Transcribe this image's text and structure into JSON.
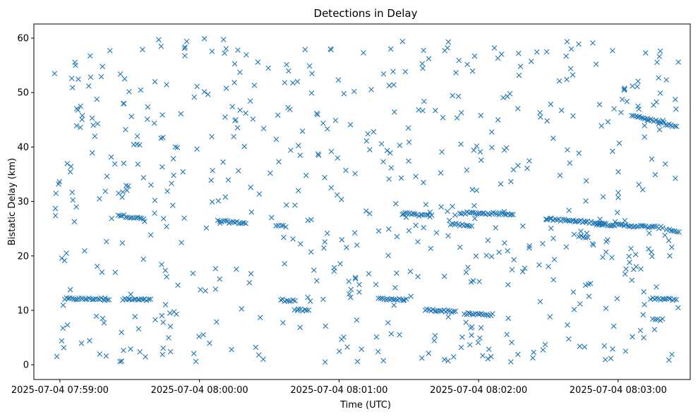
{
  "chart_data": {
    "type": "scatter",
    "title": "Detections in Delay",
    "xlabel": "Time (UTC)",
    "ylabel": "Bistatic Delay (km)",
    "x_ticks": [
      "2025-07-04 07:59:00",
      "2025-07-04 08:00:00",
      "2025-07-04 08:01:00",
      "2025-07-04 08:02:00",
      "2025-07-04 08:03:00"
    ],
    "x_tick_seconds": [
      0,
      60,
      120,
      180,
      240
    ],
    "x_unit": "seconds after 2025-07-04 07:59:00",
    "xlim": [
      -11.2,
      271
    ],
    "y_ticks": [
      0,
      10,
      20,
      30,
      40,
      50,
      60
    ],
    "ylim": [
      -2.7,
      62.6
    ],
    "marker": "x",
    "color": "#1f77b4",
    "grid": false,
    "clusters": [
      {
        "from": 2,
        "to": 21,
        "y_from": 12.1,
        "y_to": 12.1
      },
      {
        "from": 25,
        "to": 36,
        "y_from": 27.5,
        "y_to": 26.8
      },
      {
        "from": 27,
        "to": 39,
        "y_from": 12.0,
        "y_to": 11.9
      },
      {
        "from": 68,
        "to": 80,
        "y_from": 26.4,
        "y_to": 26.0
      },
      {
        "from": 93,
        "to": 97,
        "y_from": 25.6,
        "y_to": 25.4
      },
      {
        "from": 95,
        "to": 101,
        "y_from": 11.9,
        "y_to": 11.8
      },
      {
        "from": 101,
        "to": 107,
        "y_from": 10.1,
        "y_to": 9.9
      },
      {
        "from": 137,
        "to": 149,
        "y_from": 12.2,
        "y_to": 11.9
      },
      {
        "from": 147,
        "to": 160,
        "y_from": 27.8,
        "y_to": 27.3
      },
      {
        "from": 157,
        "to": 170,
        "y_from": 10.1,
        "y_to": 9.8
      },
      {
        "from": 168,
        "to": 177,
        "y_from": 25.9,
        "y_to": 25.4
      },
      {
        "from": 172,
        "to": 195,
        "y_from": 27.9,
        "y_to": 27.7
      },
      {
        "from": 174,
        "to": 186,
        "y_from": 9.4,
        "y_to": 9.2
      },
      {
        "from": 209,
        "to": 234,
        "y_from": 26.8,
        "y_to": 26.0
      },
      {
        "from": 223,
        "to": 227,
        "y_from": 23.5,
        "y_to": 23.5
      },
      {
        "from": 226,
        "to": 228,
        "y_from": 14.8,
        "y_to": 14.8
      },
      {
        "from": 230,
        "to": 259,
        "y_from": 25.9,
        "y_to": 25.2
      },
      {
        "from": 246,
        "to": 265,
        "y_from": 45.9,
        "y_to": 43.7
      },
      {
        "from": 254,
        "to": 265,
        "y_from": 12.1,
        "y_to": 12.0
      },
      {
        "from": 255,
        "to": 259,
        "y_from": 8.4,
        "y_to": 8.3
      },
      {
        "from": 261,
        "to": 266,
        "y_from": 24.8,
        "y_to": 24.5
      }
    ],
    "background_points": [
      [
        -2.3,
        53.5
      ],
      [
        -1.9,
        27.4
      ],
      [
        -0.6,
        33.2
      ],
      [
        2.8,
        20.5
      ],
      [
        5.1,
        52.6
      ],
      [
        6.2,
        26.3
      ],
      [
        8.8,
        43.6
      ],
      [
        12.4,
        51.2
      ],
      [
        14.3,
        44.0
      ],
      [
        17.0,
        30.5
      ],
      [
        19.9,
        1.6
      ],
      [
        21.5,
        57.7
      ],
      [
        23.6,
        36.9
      ],
      [
        26.0,
        53.4
      ],
      [
        28.2,
        43.2
      ],
      [
        30.4,
        2.9
      ],
      [
        33.1,
        40.5
      ],
      [
        35.5,
        57.9
      ],
      [
        37.6,
        45.1
      ],
      [
        40.8,
        30.2
      ],
      [
        43.5,
        58.5
      ],
      [
        46.2,
        31.9
      ],
      [
        48.9,
        34.8
      ],
      [
        52.0,
        46.1
      ],
      [
        54.5,
        59.4
      ],
      [
        57.2,
        16.8
      ],
      [
        59.8,
        5.2
      ],
      [
        62.1,
        59.9
      ],
      [
        65.3,
        41.9
      ],
      [
        68.1,
        30.1
      ],
      [
        71.0,
        45.5
      ],
      [
        73.8,
        2.8
      ],
      [
        76.5,
        57.8
      ],
      [
        79.3,
        40.1
      ],
      [
        82.0,
        32.6
      ],
      [
        85.1,
        55.6
      ],
      [
        87.6,
        43.4
      ],
      [
        90.4,
        35.2
      ],
      [
        93.0,
        41.4
      ],
      [
        96.2,
        23.4
      ],
      [
        98.9,
        46.9
      ],
      [
        102.5,
        32.0
      ],
      [
        105.4,
        57.9
      ],
      [
        108.2,
        49.9
      ],
      [
        111.0,
        38.7
      ],
      [
        114.0,
        0.5
      ],
      [
        116.3,
        58.0
      ],
      [
        119.2,
        31.2
      ],
      [
        122.1,
        49.8
      ],
      [
        124.9,
        44.1
      ],
      [
        127.7,
        22.0
      ],
      [
        130.5,
        57.3
      ],
      [
        133.2,
        39.5
      ],
      [
        136.1,
        5.1
      ],
      [
        139.0,
        37.3
      ],
      [
        141.6,
        51.3
      ],
      [
        144.4,
        29.6
      ],
      [
        147.3,
        59.4
      ],
      [
        150.1,
        40.9
      ],
      [
        153.0,
        34.6
      ],
      [
        155.8,
        55.3
      ],
      [
        158.5,
        2.1
      ],
      [
        161.4,
        46.7
      ],
      [
        164.2,
        39.1
      ],
      [
        167.0,
        59.3
      ],
      [
        169.9,
        27.5
      ],
      [
        172.6,
        46.3
      ],
      [
        175.4,
        17.9
      ],
      [
        178.3,
        56.7
      ],
      [
        181.1,
        37.6
      ],
      [
        184.0,
        1.1
      ],
      [
        186.8,
        58.2
      ],
      [
        189.5,
        33.2
      ],
      [
        192.4,
        49.3
      ],
      [
        195.2,
        19.3
      ],
      [
        198.0,
        54.8
      ],
      [
        200.9,
        36.1
      ],
      [
        203.7,
        2.3
      ],
      [
        206.6,
        45.5
      ],
      [
        209.3,
        57.5
      ],
      [
        212.2,
        15.6
      ],
      [
        215.0,
        34.8
      ],
      [
        217.9,
        52.4
      ],
      [
        220.6,
        45.7
      ],
      [
        223.5,
        3.4
      ],
      [
        226.3,
        33.8
      ],
      [
        229.1,
        59.1
      ],
      [
        232.0,
        47.8
      ],
      [
        234.8,
        20.7
      ],
      [
        237.6,
        57.7
      ],
      [
        240.5,
        40.7
      ],
      [
        243.2,
        2.5
      ],
      [
        246.1,
        51.2
      ],
      [
        248.9,
        33.1
      ],
      [
        251.8,
        57.3
      ],
      [
        254.6,
        19.9
      ],
      [
        257.4,
        52.7
      ],
      [
        260.3,
        36.9
      ],
      [
        263.1,
        1.9
      ],
      [
        265.9,
        55.6
      ]
    ]
  }
}
